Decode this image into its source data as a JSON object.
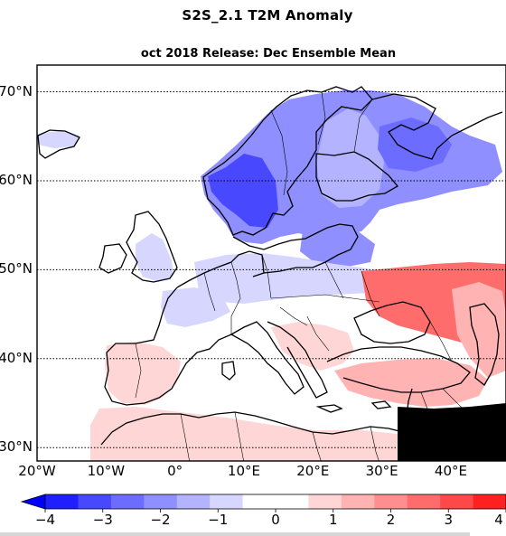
{
  "title": "S2S_2.1 T2M Anomaly",
  "subtitle": "oct 2018 Release: Dec Ensemble Mean",
  "lat_labels": [
    {
      "text": "70°N",
      "lat": 70
    },
    {
      "text": "60°N",
      "lat": 60
    },
    {
      "text": "50°N",
      "lat": 50
    },
    {
      "text": "40°N",
      "lat": 40
    },
    {
      "text": "30°N",
      "lat": 30
    }
  ],
  "lon_labels": [
    {
      "text": "20°W",
      "lon": -20
    },
    {
      "text": "10°W",
      "lon": -10
    },
    {
      "text": "0°",
      "lon": 0
    },
    {
      "text": "10°E",
      "lon": 10
    },
    {
      "text": "20°E",
      "lon": 20
    },
    {
      "text": "30°E",
      "lon": 30
    },
    {
      "text": "40°E",
      "lon": 40
    }
  ],
  "colorbar": {
    "ticks": [
      "−4",
      "−3",
      "−2",
      "−1",
      "0",
      "1",
      "2",
      "3",
      "4"
    ],
    "tick_values": [
      -4,
      -3,
      -2,
      -1,
      0,
      1,
      2,
      3,
      4
    ],
    "colors": [
      "#2020ff",
      "#4848ff",
      "#6c6cff",
      "#8f8fff",
      "#b3b3ff",
      "#d6d6ff",
      "#ffffff",
      "#ffffff",
      "#ffd6d6",
      "#ffb3b3",
      "#ff8f8f",
      "#ff6c6c",
      "#ff4848",
      "#ff2020"
    ],
    "extend_min_color": "#0000ff",
    "extend_max_color": "#ff0000"
  },
  "map": {
    "projection": "PlateCarree",
    "lon_range": [
      -20,
      48
    ],
    "lat_range": [
      28.5,
      73
    ],
    "gridlines": "dotted",
    "anomaly_regions": [
      {
        "name": "scandinavia-cold",
        "value": -2.2
      },
      {
        "name": "norway-core-cold",
        "value": -3.2
      },
      {
        "name": "finland-cold",
        "value": -1.6
      },
      {
        "name": "northwest-russia-cold",
        "value": -2.6
      },
      {
        "name": "baltic-cold",
        "value": -1.8
      },
      {
        "name": "central-europe-cool",
        "value": -1.0
      },
      {
        "name": "france-cool",
        "value": -0.9
      },
      {
        "name": "uk-cool",
        "value": -0.8
      },
      {
        "name": "iceland-cool",
        "value": -0.7
      },
      {
        "name": "iberia-warm",
        "value": 0.8
      },
      {
        "name": "north-africa-warm",
        "value": 1.1
      },
      {
        "name": "turkey-warm",
        "value": 1.6
      },
      {
        "name": "ukraine-russia-south-warm",
        "value": 1.8
      },
      {
        "name": "caspian-warm",
        "value": 2.4
      },
      {
        "name": "middle-east-warm",
        "value": 1.4
      },
      {
        "name": "balkans-warm",
        "value": 0.9
      }
    ]
  }
}
